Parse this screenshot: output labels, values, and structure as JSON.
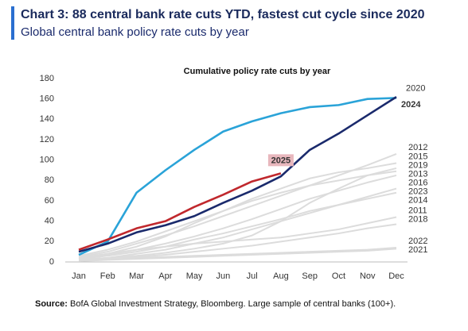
{
  "chart_data": {
    "type": "line",
    "title": "Chart 3: 88 central bank rate cuts YTD, fastest cut cycle since 2020",
    "subtitle": "Global central bank policy rate cuts by year",
    "chart_title": "Cumulative policy rate cuts by year",
    "source_label": "Source:",
    "source_text": "BofA Global Investment Strategy, Bloomberg. Large sample of central banks (100+).",
    "categories": [
      "Jan",
      "Feb",
      "Mar",
      "Apr",
      "May",
      "Jun",
      "Jul",
      "Aug",
      "Sep",
      "Oct",
      "Nov",
      "Dec"
    ],
    "ylim": [
      0,
      180
    ],
    "yticks": [
      0,
      20,
      40,
      60,
      80,
      100,
      120,
      140,
      160,
      180
    ],
    "series": [
      {
        "name": "2012",
        "color": "#dcdcdc",
        "values": [
          5,
          10,
          18,
          26,
          35,
          45,
          55,
          65,
          75,
          85,
          95,
          106
        ]
      },
      {
        "name": "2015",
        "color": "#dcdcdc",
        "values": [
          4,
          8,
          15,
          25,
          38,
          50,
          62,
          72,
          82,
          88,
          92,
          97
        ]
      },
      {
        "name": "2019",
        "color": "#dcdcdc",
        "values": [
          2,
          4,
          6,
          9,
          13,
          18,
          26,
          40,
          58,
          72,
          85,
          92
        ]
      },
      {
        "name": "2013",
        "color": "#dcdcdc",
        "values": [
          6,
          12,
          20,
          30,
          40,
          50,
          60,
          68,
          75,
          80,
          85,
          89
        ]
      },
      {
        "name": "2016",
        "color": "#dcdcdc",
        "values": [
          3,
          7,
          12,
          18,
          25,
          33,
          42,
          52,
          62,
          70,
          78,
          85
        ]
      },
      {
        "name": "2023",
        "color": "#dcdcdc",
        "values": [
          2,
          4,
          8,
          12,
          18,
          24,
          32,
          40,
          48,
          56,
          64,
          72
        ]
      },
      {
        "name": "2014",
        "color": "#dcdcdc",
        "values": [
          3,
          6,
          10,
          15,
          22,
          28,
          35,
          42,
          50,
          56,
          62,
          68
        ]
      },
      {
        "name": "2011",
        "color": "#dcdcdc",
        "values": [
          4,
          8,
          12,
          15,
          18,
          20,
          22,
          24,
          28,
          32,
          38,
          44
        ]
      },
      {
        "name": "2018",
        "color": "#dcdcdc",
        "values": [
          1,
          3,
          5,
          7,
          10,
          13,
          16,
          20,
          24,
          28,
          33,
          37
        ]
      },
      {
        "name": "2022",
        "color": "#dcdcdc",
        "values": [
          2,
          3,
          4,
          5,
          6,
          7,
          8,
          9,
          10,
          11,
          12,
          14
        ]
      },
      {
        "name": "2021",
        "color": "#dcdcdc",
        "values": [
          1,
          2,
          3,
          4,
          5,
          6,
          7,
          8,
          9,
          10,
          11,
          13
        ]
      },
      {
        "name": "2020",
        "color": "#2aa3d8",
        "values": [
          7,
          20,
          68,
          90,
          110,
          128,
          138,
          146,
          152,
          154,
          160,
          161
        ]
      },
      {
        "name": "2024",
        "color": "#1a2a6c",
        "values": [
          10,
          18,
          29,
          36,
          45,
          58,
          70,
          84,
          110,
          126,
          144,
          162
        ]
      },
      {
        "name": "2025",
        "color": "#c0282d",
        "values": [
          12,
          22,
          33,
          40,
          54,
          66,
          79,
          87,
          null,
          null,
          null,
          null
        ]
      }
    ]
  }
}
